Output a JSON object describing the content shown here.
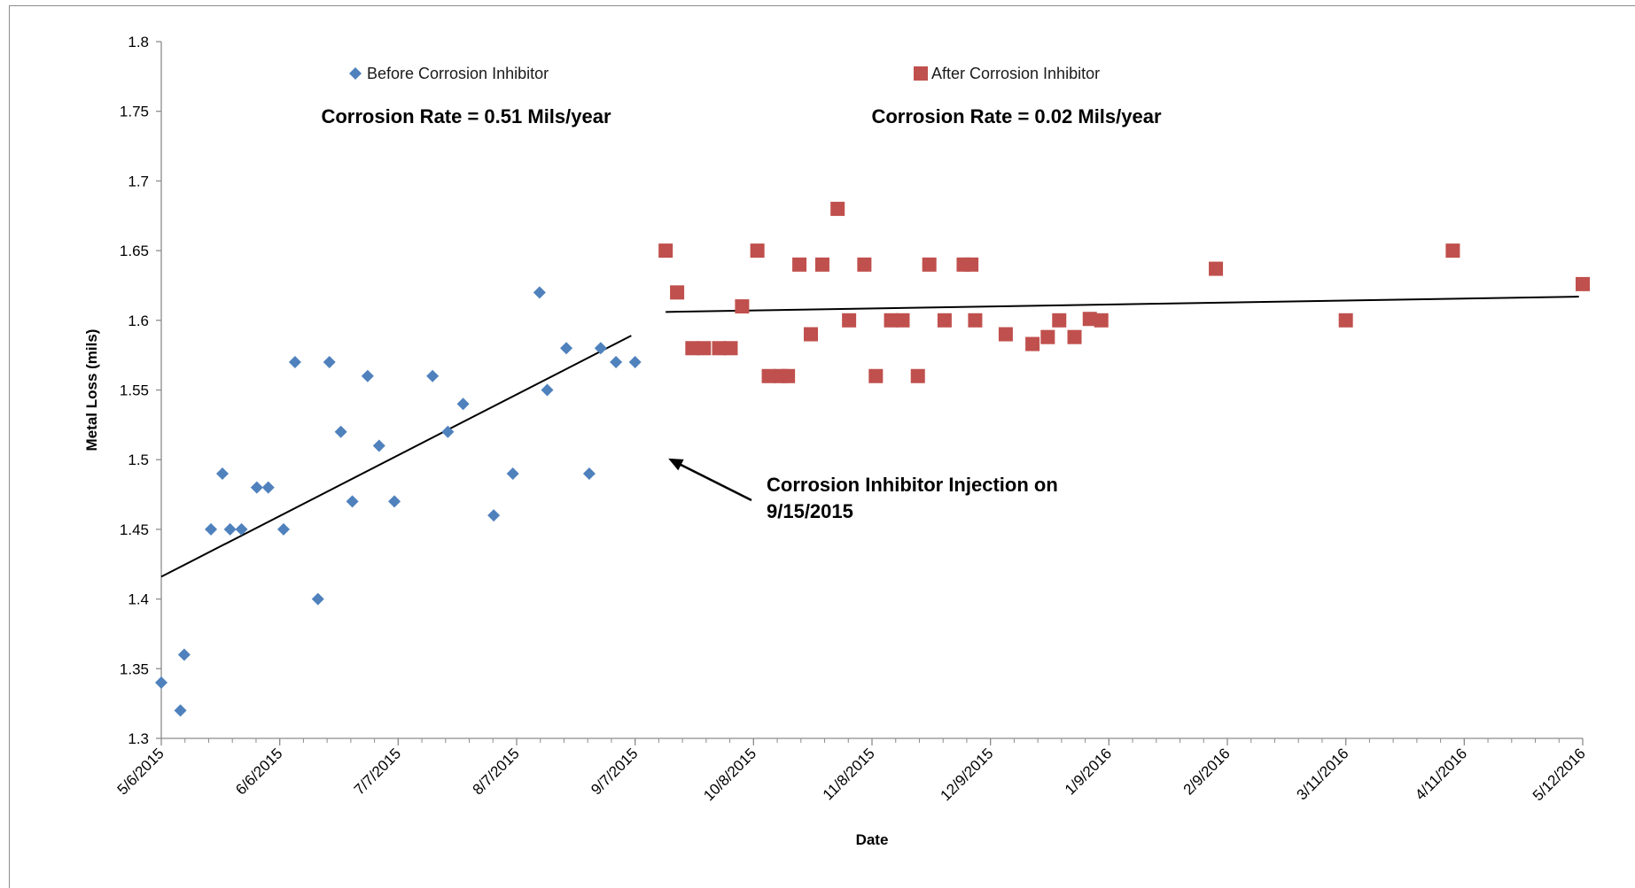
{
  "chart_data": {
    "type": "scatter",
    "title": "",
    "xlabel": "Date",
    "ylabel": "Metal Loss (mils)",
    "x_type": "date",
    "xlim": [
      "2015-05-06",
      "2016-05-12"
    ],
    "ylim": [
      1.3,
      1.8
    ],
    "y_ticks": [
      1.3,
      1.35,
      1.4,
      1.45,
      1.5,
      1.55,
      1.6,
      1.65,
      1.7,
      1.75,
      1.8
    ],
    "y_tick_labels": [
      "1.3",
      "1.35",
      "1.4",
      "1.45",
      "1.5",
      "1.55",
      "1.6",
      "1.65",
      "1.7",
      "1.75",
      "1.8"
    ],
    "x_ticks": [
      "2015-05-06",
      "2015-06-06",
      "2015-07-07",
      "2015-08-07",
      "2015-09-07",
      "2015-10-08",
      "2015-11-08",
      "2015-12-09",
      "2016-01-09",
      "2016-02-09",
      "2016-03-11",
      "2016-04-11",
      "2016-05-12"
    ],
    "x_tick_labels": [
      "5/6/2015",
      "6/6/2015",
      "7/7/2015",
      "8/7/2015",
      "9/7/2015",
      "10/8/2015",
      "11/8/2015",
      "12/9/2015",
      "1/9/2016",
      "2/9/2016",
      "3/11/2016",
      "4/11/2016",
      "5/12/2016"
    ],
    "grid": false,
    "legend_position": "top",
    "series": [
      {
        "name": "Before Corrosion Inhibitor",
        "marker": "diamond",
        "color": "#4f81bd",
        "points": [
          [
            "2015-05-06",
            1.34
          ],
          [
            "2015-05-11",
            1.32
          ],
          [
            "2015-05-12",
            1.36
          ],
          [
            "2015-05-19",
            1.45
          ],
          [
            "2015-05-22",
            1.49
          ],
          [
            "2015-05-24",
            1.45
          ],
          [
            "2015-05-27",
            1.45
          ],
          [
            "2015-05-31",
            1.48
          ],
          [
            "2015-06-03",
            1.48
          ],
          [
            "2015-06-07",
            1.45
          ],
          [
            "2015-06-10",
            1.57
          ],
          [
            "2015-06-16",
            1.4
          ],
          [
            "2015-06-19",
            1.57
          ],
          [
            "2015-06-22",
            1.52
          ],
          [
            "2015-06-25",
            1.47
          ],
          [
            "2015-06-29",
            1.56
          ],
          [
            "2015-07-02",
            1.51
          ],
          [
            "2015-07-06",
            1.47
          ],
          [
            "2015-07-16",
            1.56
          ],
          [
            "2015-07-20",
            1.52
          ],
          [
            "2015-07-24",
            1.54
          ],
          [
            "2015-08-01",
            1.46
          ],
          [
            "2015-08-06",
            1.49
          ],
          [
            "2015-08-13",
            1.62
          ],
          [
            "2015-08-15",
            1.55
          ],
          [
            "2015-08-20",
            1.58
          ],
          [
            "2015-08-26",
            1.49
          ],
          [
            "2015-08-29",
            1.58
          ],
          [
            "2015-09-02",
            1.57
          ],
          [
            "2015-09-07",
            1.57
          ]
        ]
      },
      {
        "name": "After Corrosion Inhibitor",
        "marker": "square",
        "color": "#c0504d",
        "points": [
          [
            "2015-09-15",
            1.65
          ],
          [
            "2015-09-18",
            1.62
          ],
          [
            "2015-09-22",
            1.58
          ],
          [
            "2015-09-25",
            1.58
          ],
          [
            "2015-09-29",
            1.58
          ],
          [
            "2015-10-02",
            1.58
          ],
          [
            "2015-10-05",
            1.61
          ],
          [
            "2015-10-09",
            1.65
          ],
          [
            "2015-10-12",
            1.56
          ],
          [
            "2015-10-15",
            1.56
          ],
          [
            "2015-10-17",
            1.56
          ],
          [
            "2015-10-20",
            1.64
          ],
          [
            "2015-10-23",
            1.59
          ],
          [
            "2015-10-26",
            1.64
          ],
          [
            "2015-10-30",
            1.68
          ],
          [
            "2015-11-02",
            1.6
          ],
          [
            "2015-11-06",
            1.64
          ],
          [
            "2015-11-09",
            1.56
          ],
          [
            "2015-11-13",
            1.6
          ],
          [
            "2015-11-16",
            1.6
          ],
          [
            "2015-11-20",
            1.56
          ],
          [
            "2015-11-23",
            1.64
          ],
          [
            "2015-11-27",
            1.6
          ],
          [
            "2015-12-02",
            1.64
          ],
          [
            "2015-12-04",
            1.64
          ],
          [
            "2015-12-05",
            1.6
          ],
          [
            "2015-12-13",
            1.59
          ],
          [
            "2015-12-20",
            1.583
          ],
          [
            "2015-12-24",
            1.588
          ],
          [
            "2015-12-27",
            1.6
          ],
          [
            "2015-12-31",
            1.588
          ],
          [
            "2016-01-04",
            1.601
          ],
          [
            "2016-01-07",
            1.6
          ],
          [
            "2016-02-06",
            1.637
          ],
          [
            "2016-03-11",
            1.6
          ],
          [
            "2016-04-08",
            1.65
          ],
          [
            "2016-05-12",
            1.626
          ]
        ]
      }
    ],
    "trendlines": [
      {
        "series": "Before Corrosion Inhibitor",
        "from": [
          "2015-05-06",
          1.416
        ],
        "to": [
          "2015-09-06",
          1.589
        ]
      },
      {
        "series": "After Corrosion Inhibitor",
        "from": [
          "2015-09-15",
          1.606
        ],
        "to": [
          "2016-05-11",
          1.617
        ]
      }
    ],
    "annotations": [
      {
        "text": "Corrosion Rate = 0.51 Mils/year",
        "x": "2015-07-06",
        "y": 1.747
      },
      {
        "text": "Corrosion Rate = 0.02 Mils/year",
        "x": "2015-12-20",
        "y": 1.747
      },
      {
        "text_lines": [
          "Corrosion Inhibitor Injection on",
          "9/15/2015"
        ],
        "x": "2015-10-15",
        "y": 1.5,
        "arrow_to": [
          "2015-09-15",
          1.504
        ]
      }
    ]
  }
}
